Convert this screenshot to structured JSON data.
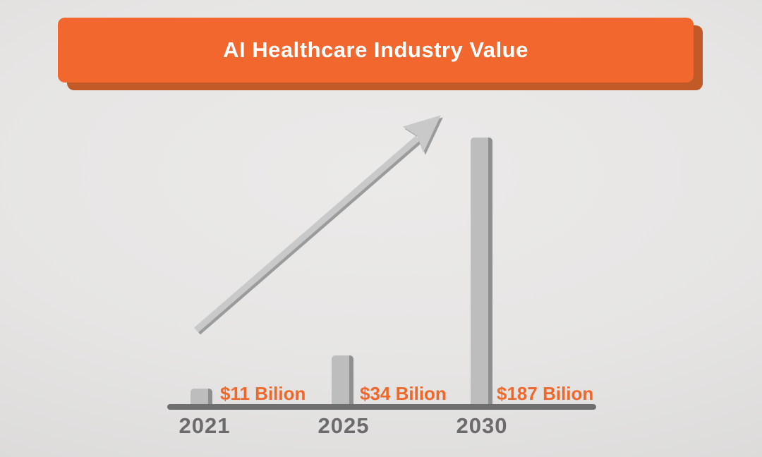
{
  "header": {
    "title": "AI Healthcare Industry Value"
  },
  "colors": {
    "banner_orange": "#F2672D",
    "banner_shadow": "#C25A28",
    "title_text": "#FFFFFF",
    "label_orange": "#F0672A",
    "bar_fill": "#BDBDBD",
    "bar_edge": "#8F8F8F",
    "axis_gray": "#6F6F6F",
    "year_gray": "#6B6B6B",
    "arrow_fill": "#C9C9C9",
    "arrow_edge": "#9B9B9B",
    "background": "#E5E4E3"
  },
  "chart_data": {
    "type": "bar",
    "title": "AI Healthcare Industry Value",
    "categories": [
      "2021",
      "2025",
      "2030"
    ],
    "values": [
      11,
      34,
      187
    ],
    "value_labels": [
      "$11 Bilion",
      "$34 Bilion",
      "$187 Bilion"
    ],
    "ylim": [
      0,
      190
    ],
    "grid": false,
    "legend": false,
    "annotations": [
      "upward trend arrow"
    ]
  }
}
